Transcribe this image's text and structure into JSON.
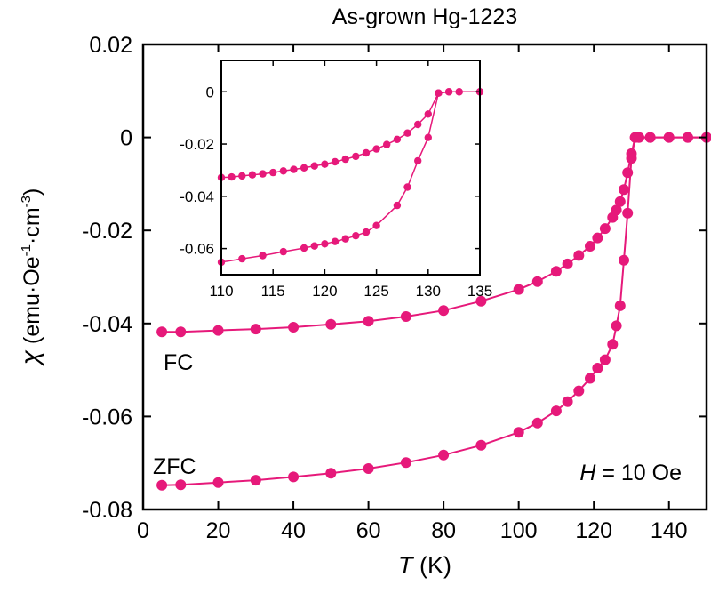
{
  "chart_data": {
    "type": "scatter",
    "title": "As-grown Hg-1223",
    "xlabel_italic": "T",
    "xlabel_unit": " (K)",
    "ylabel_symbol": "χ",
    "ylabel_unit_open": " (emu·Oe",
    "ylabel_exp1": "-1",
    "ylabel_unit_mid": "·cm",
    "ylabel_exp2": "-3",
    "ylabel_unit_close": ")",
    "xlim": [
      0,
      150
    ],
    "ylim": [
      -0.08,
      0.02
    ],
    "xticks": [
      0,
      20,
      40,
      60,
      80,
      100,
      120,
      140
    ],
    "xtick_labels": [
      "0",
      "20",
      "40",
      "60",
      "80",
      "100",
      "120",
      "140"
    ],
    "yticks": [
      -0.08,
      -0.06,
      -0.04,
      -0.02,
      0,
      0.02
    ],
    "ytick_labels": [
      "-0.08",
      "-0.06",
      "-0.04",
      "-0.02",
      "0",
      "0.02"
    ],
    "grid": false,
    "color": "#E6197A",
    "annotations": {
      "fc_label": "FC",
      "zfc_label": "ZFC",
      "field_italic": "H",
      "field_text": " = 10 Oe"
    },
    "series": [
      {
        "name": "FC",
        "x": [
          5,
          10,
          20,
          30,
          40,
          50,
          60,
          70,
          80,
          90,
          100,
          105,
          110,
          113,
          116,
          119,
          121,
          123,
          125,
          126,
          127,
          128,
          129,
          130,
          131,
          132,
          135,
          140,
          145,
          150
        ],
        "y": [
          -0.0418,
          -0.0418,
          -0.0415,
          -0.0412,
          -0.0408,
          -0.0402,
          -0.0395,
          -0.0385,
          -0.0372,
          -0.0352,
          -0.0327,
          -0.031,
          -0.0288,
          -0.0272,
          -0.0254,
          -0.0234,
          -0.0216,
          -0.0196,
          -0.0172,
          -0.0156,
          -0.0138,
          -0.0112,
          -0.0076,
          -0.0035,
          0.0,
          0.0,
          0.0,
          0.0,
          0.0,
          0.0
        ]
      },
      {
        "name": "ZFC",
        "x": [
          5,
          10,
          20,
          30,
          40,
          50,
          60,
          70,
          80,
          90,
          100,
          105,
          110,
          113,
          116,
          119,
          121,
          123,
          125,
          126,
          127,
          128,
          129,
          130,
          131,
          132,
          135,
          140,
          145,
          150
        ],
        "y": [
          -0.0748,
          -0.0747,
          -0.0742,
          -0.0737,
          -0.073,
          -0.0722,
          -0.0712,
          -0.0699,
          -0.0683,
          -0.0662,
          -0.0634,
          -0.0614,
          -0.0588,
          -0.0568,
          -0.0545,
          -0.0518,
          -0.0496,
          -0.0478,
          -0.0445,
          -0.0405,
          -0.0362,
          -0.0264,
          -0.0163,
          -0.0045,
          0.0,
          0.0,
          0.0,
          0.0,
          0.0,
          0.0
        ]
      }
    ],
    "inset": {
      "xlim": [
        110,
        135
      ],
      "ylim": [
        -0.07,
        0.012
      ],
      "xticks": [
        110,
        115,
        120,
        125,
        130,
        135
      ],
      "xtick_labels": [
        "110",
        "115",
        "120",
        "125",
        "130",
        "135"
      ],
      "yticks": [
        -0.06,
        -0.04,
        -0.02,
        0
      ],
      "ytick_labels": [
        "-0.06",
        "-0.04",
        "-0.02",
        "0"
      ],
      "series": [
        {
          "name": "FC",
          "x": [
            110,
            111,
            112,
            113,
            114,
            115,
            116,
            117,
            118,
            119,
            120,
            121,
            122,
            123,
            124,
            125,
            126,
            127,
            128,
            129,
            130,
            131,
            132,
            133,
            135
          ],
          "y": [
            -0.0328,
            -0.0326,
            -0.0322,
            -0.0318,
            -0.0314,
            -0.0309,
            -0.0303,
            -0.0297,
            -0.0291,
            -0.0284,
            -0.0277,
            -0.0268,
            -0.0258,
            -0.0247,
            -0.0234,
            -0.0219,
            -0.0202,
            -0.0182,
            -0.0158,
            -0.0125,
            -0.0085,
            -0.0005,
            0.0,
            0.0,
            0.0
          ]
        },
        {
          "name": "ZFC",
          "x": [
            110,
            112,
            114,
            116,
            118,
            119,
            120,
            121,
            122,
            123,
            124,
            125,
            127,
            128,
            129,
            130,
            131,
            132,
            133,
            135
          ],
          "y": [
            -0.0652,
            -0.0639,
            -0.0627,
            -0.0612,
            -0.0598,
            -0.059,
            -0.0582,
            -0.0573,
            -0.0563,
            -0.0551,
            -0.0537,
            -0.0512,
            -0.0435,
            -0.0365,
            -0.0264,
            -0.0175,
            -0.0005,
            0.0,
            0.0,
            0.0
          ]
        }
      ]
    }
  }
}
